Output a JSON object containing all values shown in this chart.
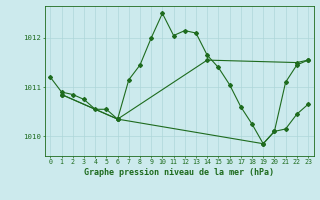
{
  "title": "Graphe pression niveau de la mer (hPa)",
  "bg_color": "#cceaed",
  "line_color": "#1e6b1e",
  "xlim": [
    -0.5,
    23.5
  ],
  "ylim": [
    1009.6,
    1012.65
  ],
  "yticks": [
    1010,
    1011,
    1012
  ],
  "xticks": [
    0,
    1,
    2,
    3,
    4,
    5,
    6,
    7,
    8,
    9,
    10,
    11,
    12,
    13,
    14,
    15,
    16,
    17,
    18,
    19,
    20,
    21,
    22,
    23
  ],
  "series": [
    {
      "x": [
        0,
        1,
        2,
        3,
        4,
        5,
        6,
        7,
        8,
        9,
        10,
        11,
        12,
        13,
        14,
        15,
        16,
        17,
        18,
        19,
        20,
        21,
        22,
        23
      ],
      "y": [
        1011.2,
        1010.9,
        1010.85,
        1010.75,
        1010.55,
        1010.55,
        1010.35,
        1011.15,
        1011.45,
        1012.0,
        1012.5,
        1012.05,
        1012.15,
        1012.1,
        1011.65,
        1011.4,
        1011.05,
        1010.6,
        1010.25,
        1009.85,
        1010.1,
        1011.1,
        1011.45,
        1011.55
      ]
    },
    {
      "x": [
        1,
        6,
        14,
        22,
        23
      ],
      "y": [
        1010.85,
        1010.35,
        1011.55,
        1011.5,
        1011.55
      ]
    },
    {
      "x": [
        1,
        6,
        19,
        20,
        21,
        22,
        23
      ],
      "y": [
        1010.85,
        1010.35,
        1009.85,
        1010.1,
        1010.15,
        1010.45,
        1010.65
      ]
    }
  ],
  "grid_color": "#aed6d9",
  "tick_fontsize": 4.8,
  "label_fontsize": 6.0,
  "figsize": [
    3.2,
    2.0
  ],
  "dpi": 100
}
